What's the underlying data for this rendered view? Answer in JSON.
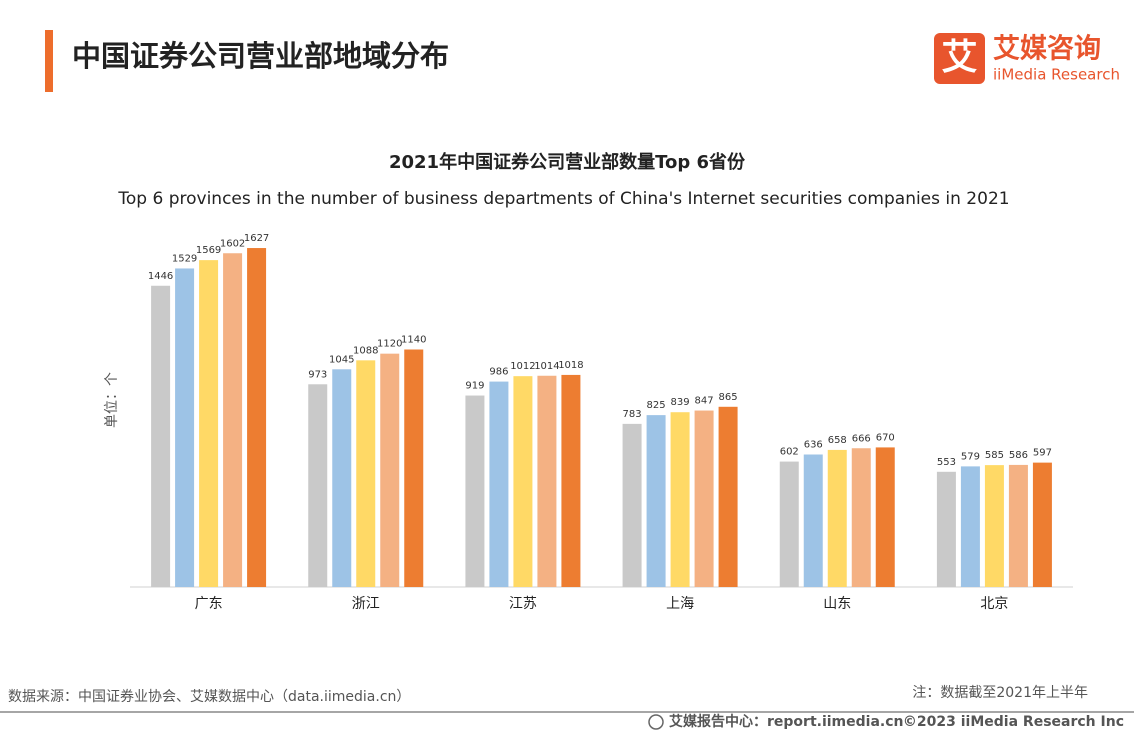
{
  "header": {
    "title": "中国证券公司营业部地域分布"
  },
  "logo": {
    "mark": "艾",
    "name": "艾媒咨询",
    "subtitle": "iiMedia Research"
  },
  "chart_data": {
    "type": "bar",
    "title": "2021年中国证券公司营业部数量Top 6省份",
    "subtitle": "Top 6 provinces in the number of business departments of China's Internet securities companies in 2021",
    "y_label": "单位：个",
    "categories": [
      "广东",
      "浙江",
      "江苏",
      "上海",
      "山东",
      "北京"
    ],
    "series": [
      {
        "color": "#c9c9c9",
        "values": [
          1446,
          973,
          919,
          783,
          602,
          553
        ]
      },
      {
        "color": "#9dc3e6",
        "values": [
          1529,
          1045,
          986,
          825,
          636,
          579
        ]
      },
      {
        "color": "#ffd966",
        "values": [
          1569,
          1088,
          1012,
          839,
          658,
          585
        ]
      },
      {
        "color": "#f4b183",
        "values": [
          1602,
          1120,
          1014,
          847,
          666,
          586
        ]
      },
      {
        "color": "#ed7d31",
        "values": [
          1627,
          1140,
          1018,
          865,
          670,
          597
        ]
      }
    ],
    "ylim": [
      0,
      1800
    ]
  },
  "footer": {
    "source": "数据来源：中国证券业协会、艾媒数据中心（data.iimedia.cn）",
    "note": "注：数据截至2021年上半年",
    "site": "艾媒报告中心：report.iimedia.cn",
    "copyright": "©2023  iiMedia Research Inc"
  }
}
